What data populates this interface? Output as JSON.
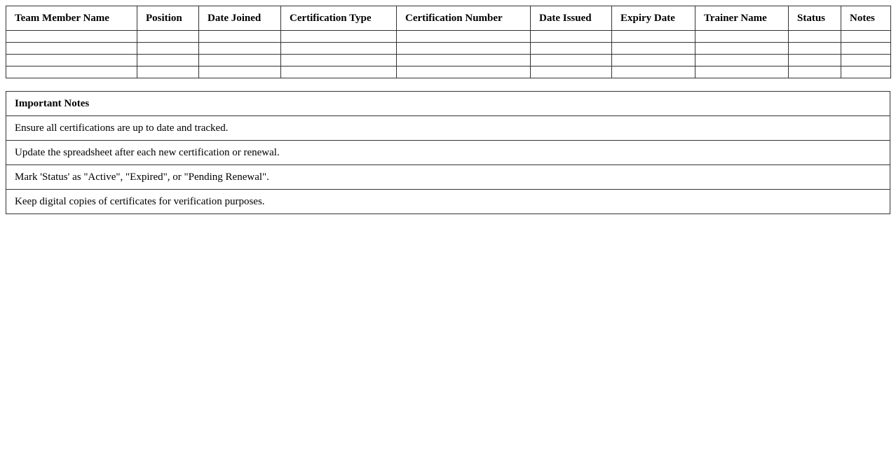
{
  "certification_table": {
    "columns": [
      "Team Member Name",
      "Position",
      "Date Joined",
      "Certification Type",
      "Certification Number",
      "Date Issued",
      "Expiry Date",
      "Trainer Name",
      "Status",
      "Notes"
    ],
    "empty_row_count": 4
  },
  "notes_table": {
    "title": "Important Notes",
    "items": [
      "Ensure all certifications are up to date and tracked.",
      "Update the spreadsheet after each new certification or renewal.",
      "Mark 'Status' as \"Active\", \"Expired\", or \"Pending Renewal\".",
      "Keep digital copies of certificates for verification purposes."
    ]
  }
}
